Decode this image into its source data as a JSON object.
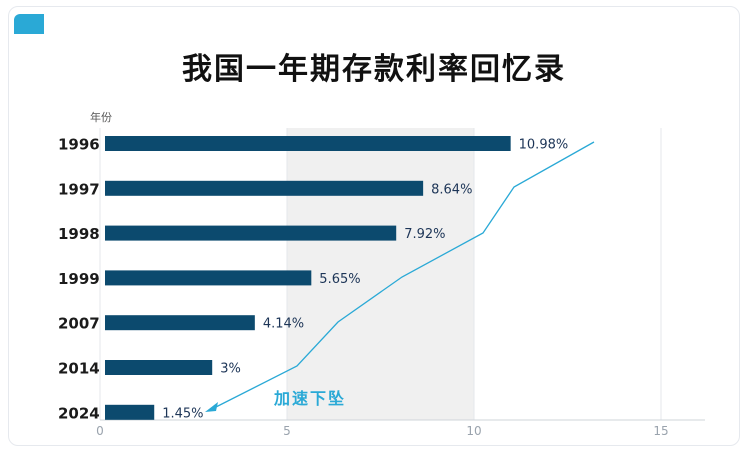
{
  "chart_data": {
    "type": "bar",
    "orientation": "horizontal",
    "title": "我国一年期存款利率回忆录",
    "ylabel": "年份",
    "categories": [
      "1996",
      "1997",
      "1998",
      "1999",
      "2007",
      "2014",
      "2024"
    ],
    "values": [
      10.98,
      8.64,
      7.92,
      5.65,
      4.14,
      3,
      1.45
    ],
    "data_labels": [
      "10.98%",
      "8.64%",
      "7.92%",
      "5.65%",
      "4.14%",
      "3%",
      "1.45%"
    ],
    "xlim": [
      0,
      15
    ],
    "xticks": [
      0,
      5,
      10,
      15
    ],
    "highlight_band": [
      5,
      10
    ],
    "bar_color": "#0c4a6e",
    "trend_color": "#2aa9d6",
    "annotation": "加速下坠"
  }
}
